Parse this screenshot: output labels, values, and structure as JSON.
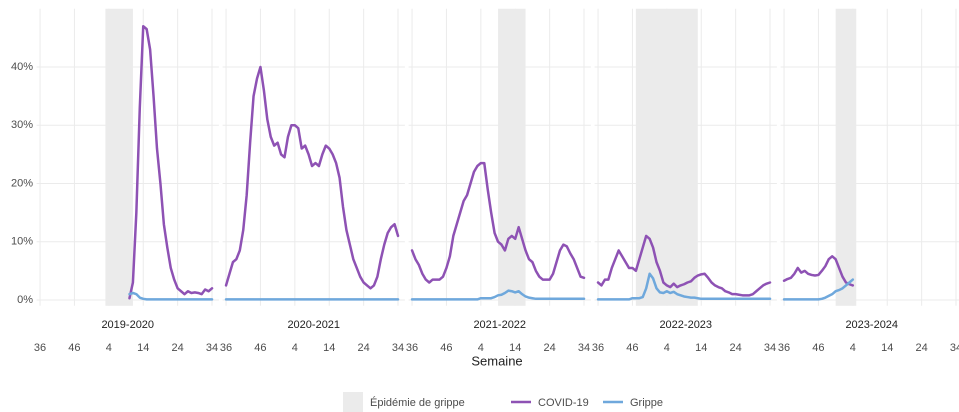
{
  "chart_data": {
    "type": "line",
    "xlabel": "Semaine",
    "band_name": "Épidémie de grippe",
    "band_color": "#ebebeb",
    "grid": true,
    "ylim": [
      -1,
      50
    ],
    "yticks": [
      {
        "value": 0,
        "label": "0%"
      },
      {
        "value": 10,
        "label": "10%"
      },
      {
        "value": 20,
        "label": "20%"
      },
      {
        "value": 30,
        "label": "30%"
      },
      {
        "value": 40,
        "label": "40%"
      }
    ],
    "xlim": [
      -1,
      52
    ],
    "xticks": [
      {
        "value": 0,
        "label": "36"
      },
      {
        "value": 10,
        "label": "46"
      },
      {
        "value": 20,
        "label": "4"
      },
      {
        "value": 30,
        "label": "14"
      },
      {
        "value": 40,
        "label": "24"
      },
      {
        "value": 50,
        "label": "34"
      }
    ],
    "facets": [
      {
        "title": "2019-2020",
        "band": [
          19,
          27
        ],
        "x": [
          26,
          27,
          28,
          29,
          30,
          31,
          32,
          33,
          34,
          35,
          36,
          37,
          38,
          39,
          40,
          41,
          42,
          43,
          44,
          45,
          46,
          47,
          48,
          49,
          50
        ]
      },
      {
        "title": "2020-2021",
        "x": [
          0,
          1,
          2,
          3,
          4,
          5,
          6,
          7,
          8,
          9,
          10,
          11,
          12,
          13,
          14,
          15,
          16,
          17,
          18,
          19,
          20,
          21,
          22,
          23,
          24,
          25,
          26,
          27,
          28,
          29,
          30,
          31,
          32,
          33,
          34,
          35,
          36,
          37,
          38,
          39,
          40,
          41,
          42,
          43,
          44,
          45,
          46,
          47,
          48,
          49,
          50
        ]
      },
      {
        "title": "2021-2022",
        "band": [
          25,
          33
        ],
        "x": [
          0,
          1,
          2,
          3,
          4,
          5,
          6,
          7,
          8,
          9,
          10,
          11,
          12,
          13,
          14,
          15,
          16,
          17,
          18,
          19,
          20,
          21,
          22,
          23,
          24,
          25,
          26,
          27,
          28,
          29,
          30,
          31,
          32,
          33,
          34,
          35,
          36,
          37,
          38,
          39,
          40,
          41,
          42,
          43,
          44,
          45,
          46,
          47,
          48,
          49,
          50
        ]
      },
      {
        "title": "2022-2023",
        "band": [
          11,
          29
        ],
        "x": [
          0,
          1,
          2,
          3,
          4,
          5,
          6,
          7,
          8,
          9,
          10,
          11,
          12,
          13,
          14,
          15,
          16,
          17,
          18,
          19,
          20,
          21,
          22,
          23,
          24,
          25,
          26,
          27,
          28,
          29,
          30,
          31,
          32,
          33,
          34,
          35,
          36,
          37,
          38,
          39,
          40,
          41,
          42,
          43,
          44,
          45,
          46,
          47,
          48,
          49,
          50
        ]
      },
      {
        "title": "2023-2024",
        "band": [
          15,
          21
        ],
        "x": [
          0,
          1,
          2,
          3,
          4,
          5,
          6,
          7,
          8,
          9,
          10,
          11,
          12,
          13,
          14,
          15,
          16,
          17,
          18,
          19,
          20
        ]
      }
    ],
    "series": [
      {
        "name": "COVID-19",
        "color": "#8e52b4",
        "values": [
          [
            0.3,
            3,
            15,
            33,
            47,
            46.5,
            43,
            35,
            26,
            20,
            13,
            9,
            5.5,
            3.5,
            2,
            1.5,
            1,
            1.5,
            1.2,
            1.3,
            1.2,
            1,
            1.8,
            1.5,
            2
          ],
          [
            2.5,
            4.5,
            6.5,
            7,
            8.5,
            12,
            18,
            27,
            35,
            38,
            40,
            36,
            31,
            28,
            26.5,
            27,
            25,
            24.5,
            28,
            30,
            30,
            29.5,
            26,
            26.5,
            25,
            23,
            23.5,
            23,
            25,
            26.5,
            26,
            25,
            23.5,
            21,
            16,
            12,
            9.5,
            7,
            5.5,
            4,
            3,
            2.5,
            2,
            2.5,
            4,
            7,
            9.5,
            11.5,
            12.5,
            13,
            11
          ],
          [
            8.5,
            7,
            6,
            4.5,
            3.5,
            3,
            3.5,
            3.5,
            3.5,
            4,
            5.5,
            7.5,
            11,
            13,
            15,
            17,
            18,
            20,
            22,
            23,
            23.5,
            23.5,
            19,
            15,
            11.5,
            10,
            9.5,
            8.5,
            10.5,
            11,
            10.5,
            12.5,
            10.5,
            8.5,
            7,
            6.5,
            5,
            4,
            3.5,
            3.5,
            3.5,
            4.5,
            6.5,
            8.5,
            9.5,
            9.2,
            8,
            7,
            5.5,
            4,
            3.8
          ],
          [
            3,
            2.5,
            3.5,
            3.5,
            5.5,
            7,
            8.5,
            7.5,
            6.5,
            5.5,
            5.5,
            5,
            7,
            9,
            11,
            10.5,
            9,
            6.5,
            5,
            3,
            2.5,
            2.2,
            2.8,
            2.2,
            2.5,
            2.7,
            3,
            3.2,
            3.8,
            4.2,
            4.4,
            4.5,
            3.8,
            3,
            2.5,
            2.2,
            2,
            1.5,
            1.3,
            1,
            1,
            0.9,
            0.8,
            0.8,
            0.8,
            1,
            1.5,
            2,
            2.5,
            2.8,
            3
          ],
          [
            3.3,
            3.6,
            3.8,
            4.5,
            5.5,
            4.7,
            5,
            4.5,
            4.3,
            4.2,
            4.3,
            5,
            5.8,
            7,
            7.5,
            7,
            5.5,
            4,
            3,
            2.7,
            2.5
          ]
        ]
      },
      {
        "name": "Grippe",
        "color": "#6fa8dc",
        "values": [
          [
            1,
            1.2,
            1,
            0.4,
            0.2,
            0.1,
            0.1,
            0.1,
            0.1,
            0.1,
            0.1,
            0.1,
            0.1,
            0.1,
            0.1,
            0.1,
            0.1,
            0.1,
            0.1,
            0.1,
            0.1,
            0.1,
            0.1,
            0.1,
            0.1
          ],
          [
            0.1,
            0.1,
            0.1,
            0.1,
            0.1,
            0.1,
            0.1,
            0.1,
            0.1,
            0.1,
            0.1,
            0.1,
            0.1,
            0.1,
            0.1,
            0.1,
            0.1,
            0.1,
            0.1,
            0.1,
            0.1,
            0.1,
            0.1,
            0.1,
            0.1,
            0.1,
            0.1,
            0.1,
            0.1,
            0.1,
            0.1,
            0.1,
            0.1,
            0.1,
            0.1,
            0.1,
            0.1,
            0.1,
            0.1,
            0.1,
            0.1,
            0.1,
            0.1,
            0.1,
            0.1,
            0.1,
            0.1,
            0.1,
            0.1,
            0.1,
            0.1
          ],
          [
            0.1,
            0.1,
            0.1,
            0.1,
            0.1,
            0.1,
            0.1,
            0.1,
            0.1,
            0.1,
            0.1,
            0.1,
            0.1,
            0.1,
            0.1,
            0.1,
            0.1,
            0.1,
            0.1,
            0.1,
            0.3,
            0.3,
            0.3,
            0.3,
            0.5,
            0.8,
            0.9,
            1.2,
            1.6,
            1.5,
            1.3,
            1.5,
            1,
            0.6,
            0.4,
            0.3,
            0.2,
            0.2,
            0.2,
            0.2,
            0.2,
            0.2,
            0.2,
            0.2,
            0.2,
            0.2,
            0.2,
            0.2,
            0.2,
            0.2,
            0.2
          ],
          [
            0.1,
            0.1,
            0.1,
            0.1,
            0.1,
            0.1,
            0.1,
            0.1,
            0.1,
            0.1,
            0.3,
            0.3,
            0.3,
            0.5,
            2,
            4.5,
            3.7,
            2,
            1.3,
            1.2,
            1.5,
            1.2,
            1.4,
            1,
            0.8,
            0.6,
            0.5,
            0.4,
            0.4,
            0.3,
            0.2,
            0.2,
            0.2,
            0.2,
            0.2,
            0.2,
            0.2,
            0.2,
            0.2,
            0.2,
            0.2,
            0.2,
            0.2,
            0.2,
            0.2,
            0.2,
            0.2,
            0.2,
            0.2,
            0.2,
            0.2
          ],
          [
            0.1,
            0.1,
            0.1,
            0.1,
            0.1,
            0.1,
            0.1,
            0.1,
            0.1,
            0.1,
            0.1,
            0.2,
            0.4,
            0.7,
            1,
            1.5,
            1.7,
            2,
            2.5,
            3,
            3.5
          ]
        ]
      }
    ]
  }
}
